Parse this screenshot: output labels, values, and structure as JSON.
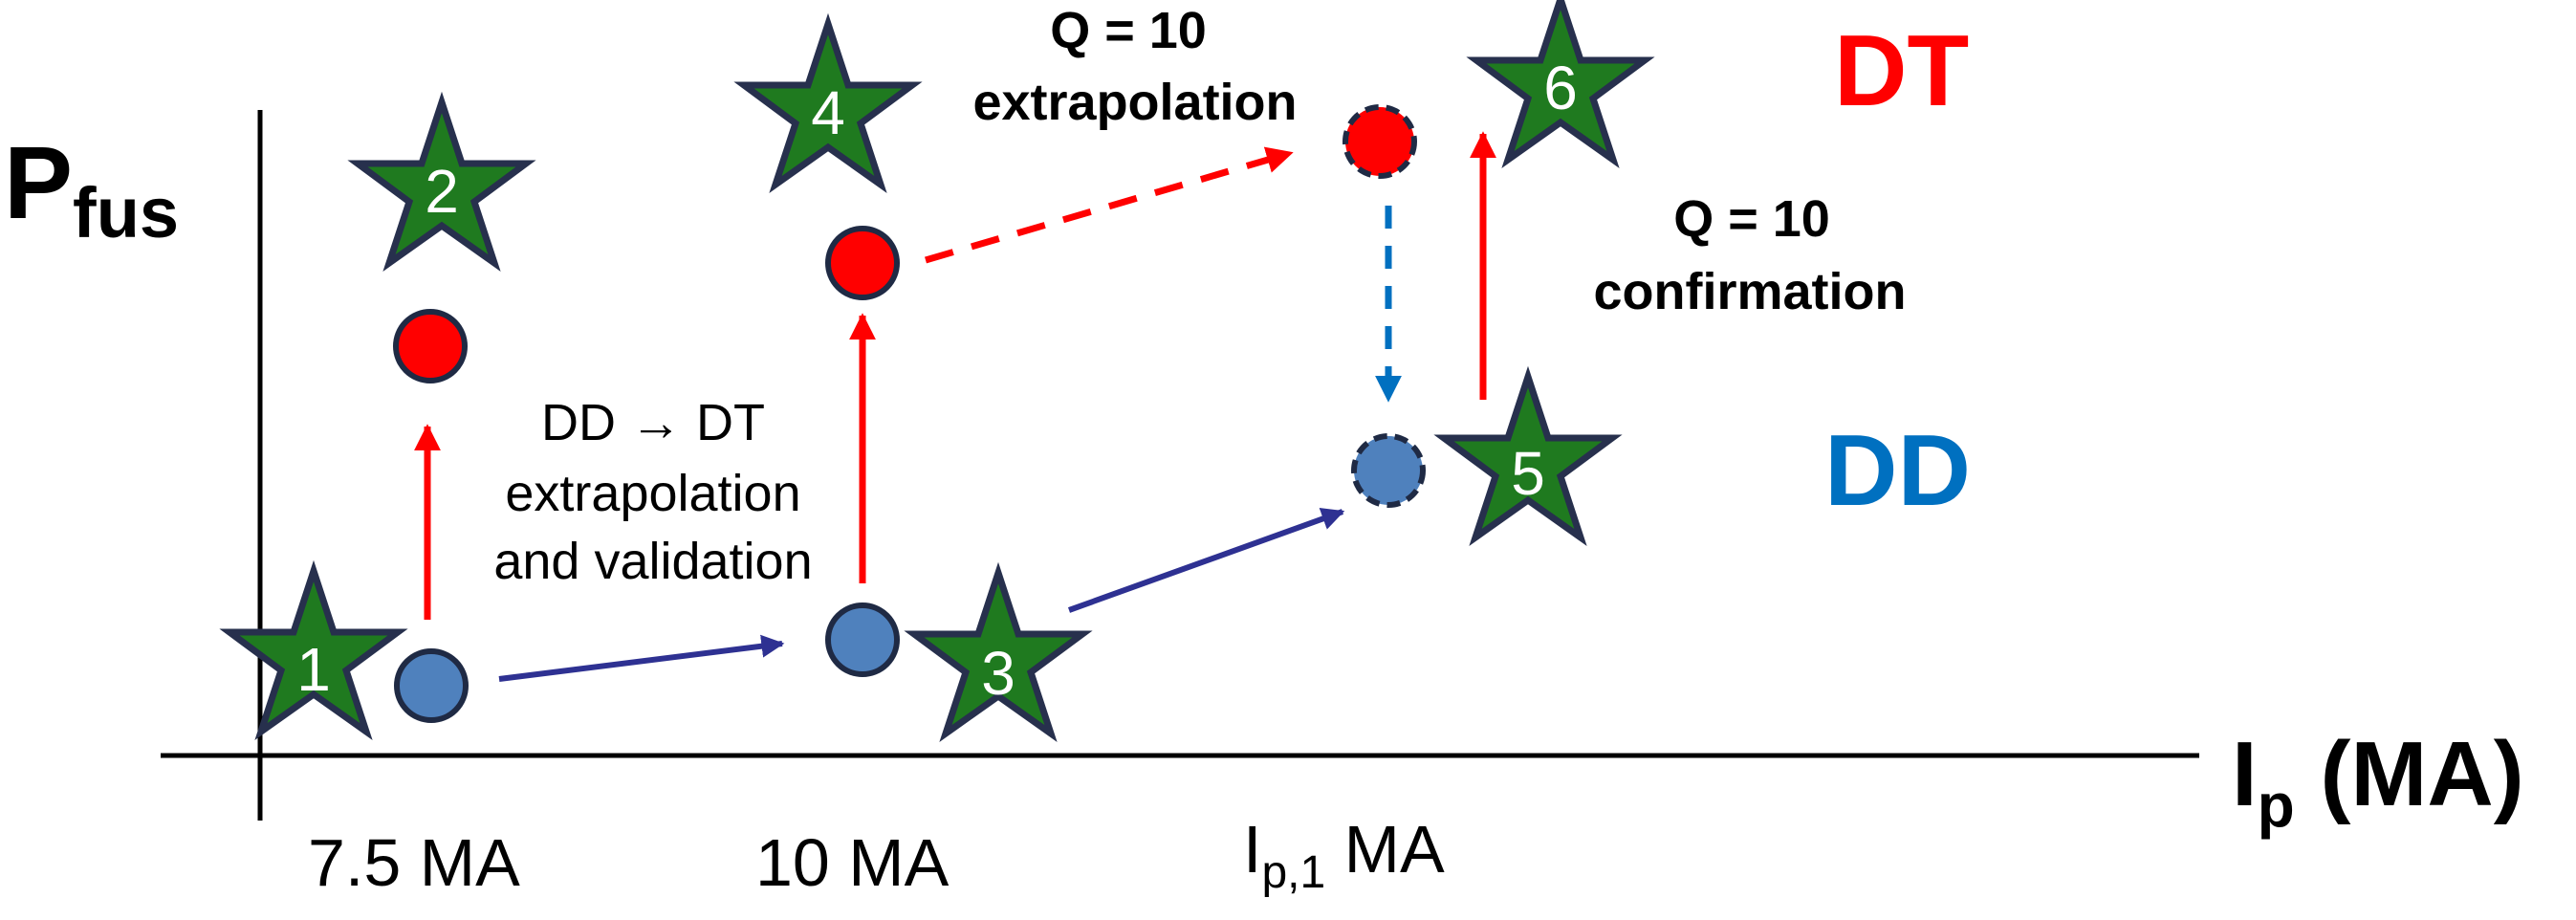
{
  "axes": {
    "y_title_main": "P",
    "y_title_sub": "fus",
    "x_title_main": "I",
    "x_title_sub": "p",
    "x_title_rest": " (MA)"
  },
  "ticks": {
    "t1": "7.5 MA",
    "t2": "10 MA",
    "t3_main": "I",
    "t3_sub": "p,1",
    "t3_rest": " MA"
  },
  "regions": {
    "dt": "DT",
    "dd": "DD"
  },
  "notes": {
    "extrap_q_line1": "Q = 10",
    "extrap_q_line2": "extrapolation",
    "confirm_line1": "Q = 10",
    "confirm_line2": "confirmation",
    "dd_dt_line1": "DD → DT",
    "dd_dt_line2": "extrapolation",
    "dd_dt_line3": "and validation"
  },
  "stars": [
    "1",
    "2",
    "3",
    "4",
    "5",
    "6"
  ],
  "colors": {
    "star_fill": "#1f7a1f",
    "star_stroke": "#27304d",
    "dd_blue": "#0070c0",
    "dt_red": "#ff0000",
    "dd_circle": "#4f81bd",
    "nav_arrow": "#2e3192"
  }
}
